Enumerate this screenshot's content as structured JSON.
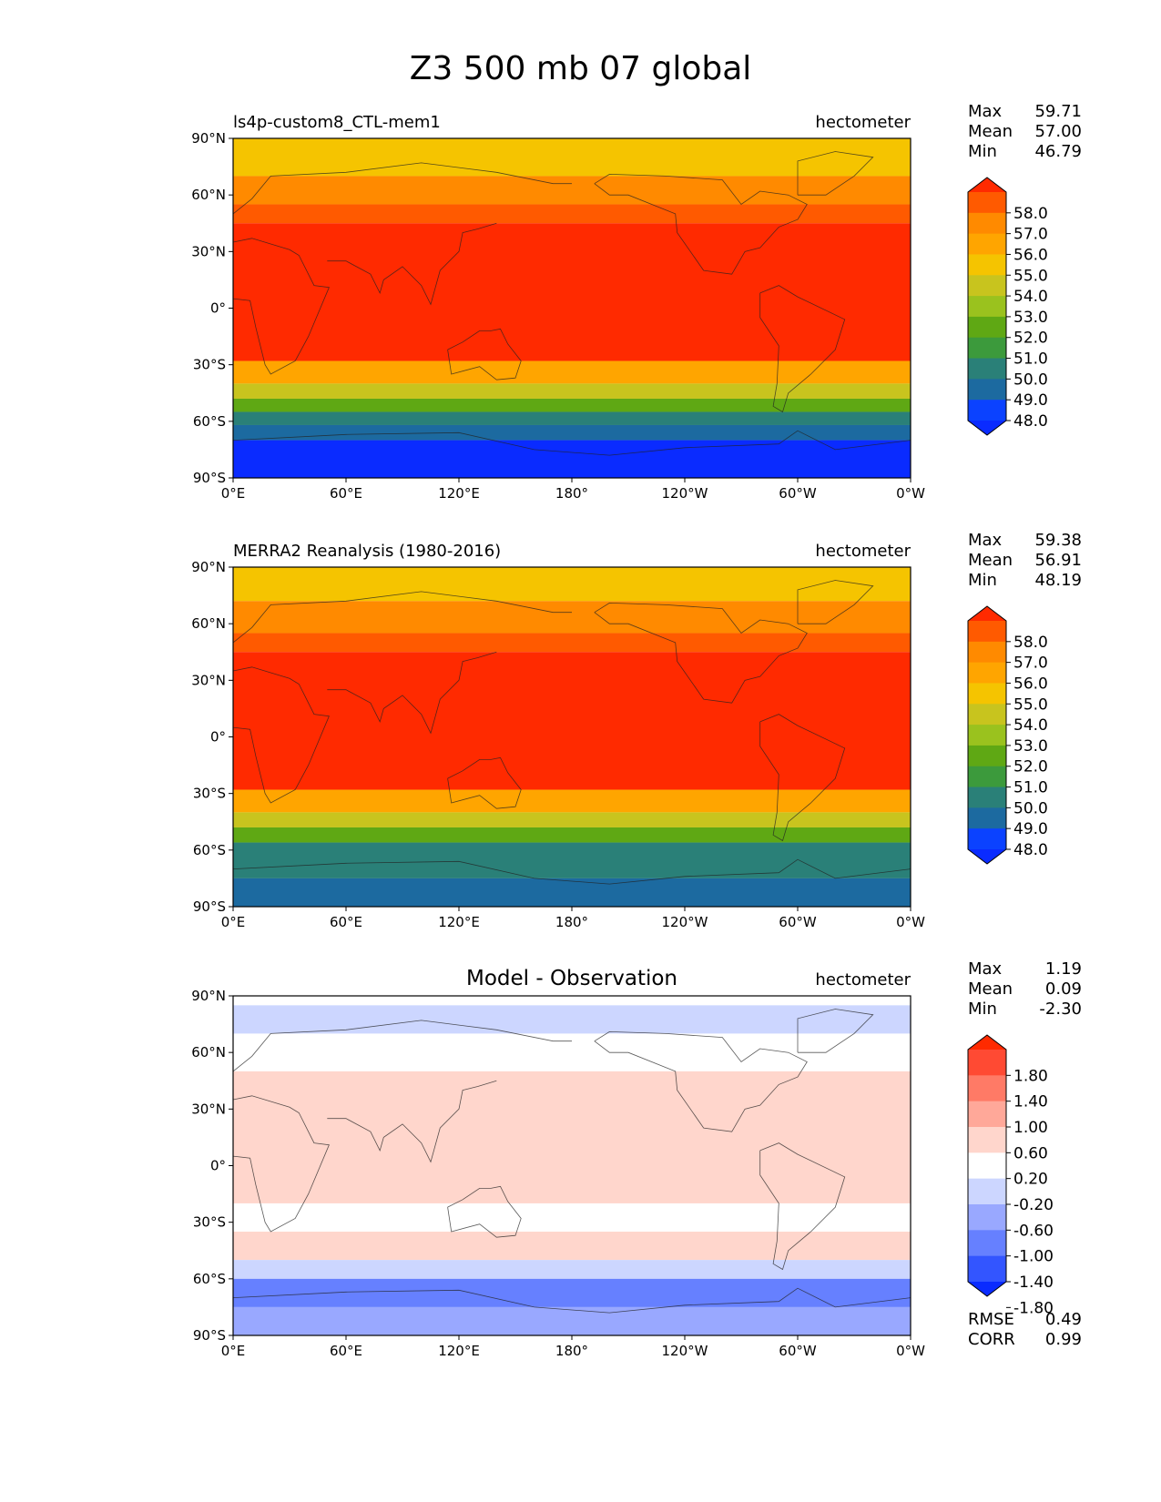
{
  "title": "Z3 500 mb 07 global",
  "chart_data": [
    {
      "type": "heatmap",
      "subtype": "filled-contour-map",
      "left_title": "ls4p-custom8_CTL-mem1",
      "center_title": "",
      "right_title": "hectometer",
      "x_ticks": [
        "0°E",
        "60°E",
        "120°E",
        "180°",
        "120°W",
        "60°W",
        "0°W"
      ],
      "y_ticks": [
        "90°N",
        "60°N",
        "30°N",
        "0°",
        "30°S",
        "60°S",
        "90°S"
      ],
      "xlim": [
        0,
        360
      ],
      "ylim": [
        -90,
        90
      ],
      "stats": [
        {
          "label": "Max",
          "value": "59.71"
        },
        {
          "label": "Mean",
          "value": "57.00"
        },
        {
          "label": "Min",
          "value": "46.79"
        }
      ],
      "colorbar": {
        "ticks": [
          "58.0",
          "57.0",
          "56.0",
          "55.0",
          "54.0",
          "53.0",
          "52.0",
          "51.0",
          "50.0",
          "49.0",
          "48.0"
        ],
        "colors": [
          "#ff2a00",
          "#ff5a00",
          "#ff8a00",
          "#ffa500",
          "#f5c400",
          "#c8c41e",
          "#9ac21e",
          "#5fa814",
          "#3c9a3c",
          "#2a8078",
          "#1c6aa0",
          "#0b42ff",
          "#0a2bff"
        ]
      },
      "latitude_band_colors": [
        {
          "lat_range": [
            90,
            70
          ],
          "color": "#f5c400"
        },
        {
          "lat_range": [
            70,
            55
          ],
          "color": "#ff8a00"
        },
        {
          "lat_range": [
            55,
            45
          ],
          "color": "#ff5a00"
        },
        {
          "lat_range": [
            45,
            -28
          ],
          "color": "#ff2a00"
        },
        {
          "lat_range": [
            -28,
            -40
          ],
          "color": "#ffa500"
        },
        {
          "lat_range": [
            -40,
            -48
          ],
          "color": "#c8c41e"
        },
        {
          "lat_range": [
            -48,
            -55
          ],
          "color": "#5fa814"
        },
        {
          "lat_range": [
            -55,
            -62
          ],
          "color": "#2a8078"
        },
        {
          "lat_range": [
            -62,
            -70
          ],
          "color": "#1c6aa0"
        },
        {
          "lat_range": [
            -70,
            -90
          ],
          "color": "#0a2bff"
        }
      ]
    },
    {
      "type": "heatmap",
      "subtype": "filled-contour-map",
      "left_title": "MERRA2 Reanalysis (1980-2016)",
      "center_title": "",
      "right_title": "hectometer",
      "x_ticks": [
        "0°E",
        "60°E",
        "120°E",
        "180°",
        "120°W",
        "60°W",
        "0°W"
      ],
      "y_ticks": [
        "90°N",
        "60°N",
        "30°N",
        "0°",
        "30°S",
        "60°S",
        "90°S"
      ],
      "xlim": [
        0,
        360
      ],
      "ylim": [
        -90,
        90
      ],
      "stats": [
        {
          "label": "Max",
          "value": "59.38"
        },
        {
          "label": "Mean",
          "value": "56.91"
        },
        {
          "label": "Min",
          "value": "48.19"
        }
      ],
      "colorbar": {
        "ticks": [
          "58.0",
          "57.0",
          "56.0",
          "55.0",
          "54.0",
          "53.0",
          "52.0",
          "51.0",
          "50.0",
          "49.0",
          "48.0"
        ],
        "colors": [
          "#ff2a00",
          "#ff5a00",
          "#ff8a00",
          "#ffa500",
          "#f5c400",
          "#c8c41e",
          "#9ac21e",
          "#5fa814",
          "#3c9a3c",
          "#2a8078",
          "#1c6aa0",
          "#0b42ff",
          "#0a2bff"
        ]
      },
      "latitude_band_colors": [
        {
          "lat_range": [
            90,
            72
          ],
          "color": "#f5c400"
        },
        {
          "lat_range": [
            72,
            55
          ],
          "color": "#ff8a00"
        },
        {
          "lat_range": [
            55,
            45
          ],
          "color": "#ff5a00"
        },
        {
          "lat_range": [
            45,
            -28
          ],
          "color": "#ff2a00"
        },
        {
          "lat_range": [
            -28,
            -40
          ],
          "color": "#ffa500"
        },
        {
          "lat_range": [
            -40,
            -48
          ],
          "color": "#c8c41e"
        },
        {
          "lat_range": [
            -48,
            -56
          ],
          "color": "#5fa814"
        },
        {
          "lat_range": [
            -56,
            -75
          ],
          "color": "#2a8078"
        },
        {
          "lat_range": [
            -75,
            -90
          ],
          "color": "#1c6aa0"
        }
      ]
    },
    {
      "type": "heatmap",
      "subtype": "filled-contour-map",
      "left_title": "",
      "center_title": "Model - Observation",
      "right_title": "hectometer",
      "x_ticks": [
        "0°E",
        "60°E",
        "120°E",
        "180°",
        "120°W",
        "60°W",
        "0°W"
      ],
      "y_ticks": [
        "90°N",
        "60°N",
        "30°N",
        "0°",
        "30°S",
        "60°S",
        "90°S"
      ],
      "xlim": [
        0,
        360
      ],
      "ylim": [
        -90,
        90
      ],
      "stats": [
        {
          "label": "Max",
          "value": "1.19"
        },
        {
          "label": "Mean",
          "value": "0.09"
        },
        {
          "label": "Min",
          "value": "-2.30"
        }
      ],
      "extra_stats": [
        {
          "label": "RMSE",
          "value": "0.49"
        },
        {
          "label": "CORR",
          "value": "0.99"
        }
      ],
      "colorbar": {
        "ticks": [
          "1.80",
          "1.40",
          "1.00",
          "0.60",
          "0.20",
          "-0.20",
          "-0.60",
          "-1.00",
          "-1.40",
          "-1.80"
        ],
        "colors": [
          "#ff2a00",
          "#ff4a33",
          "#ff7a66",
          "#ffa899",
          "#ffd6cc",
          "#ffffff",
          "#ccd6ff",
          "#99a8ff",
          "#6680ff",
          "#3355ff",
          "#0a2bff"
        ]
      },
      "latitude_band_colors": [
        {
          "lat_range": [
            90,
            85
          ],
          "color": "#ffffff"
        },
        {
          "lat_range": [
            85,
            70
          ],
          "color": "#ccd6ff"
        },
        {
          "lat_range": [
            70,
            50
          ],
          "color": "#ffffff"
        },
        {
          "lat_range": [
            50,
            -20
          ],
          "color": "#ffd6cc"
        },
        {
          "lat_range": [
            -20,
            -35
          ],
          "color": "#ffffff"
        },
        {
          "lat_range": [
            -35,
            -50
          ],
          "color": "#ffd6cc"
        },
        {
          "lat_range": [
            -50,
            -60
          ],
          "color": "#ccd6ff"
        },
        {
          "lat_range": [
            -60,
            -75
          ],
          "color": "#6680ff"
        },
        {
          "lat_range": [
            -75,
            -90
          ],
          "color": "#99a8ff"
        }
      ]
    }
  ]
}
